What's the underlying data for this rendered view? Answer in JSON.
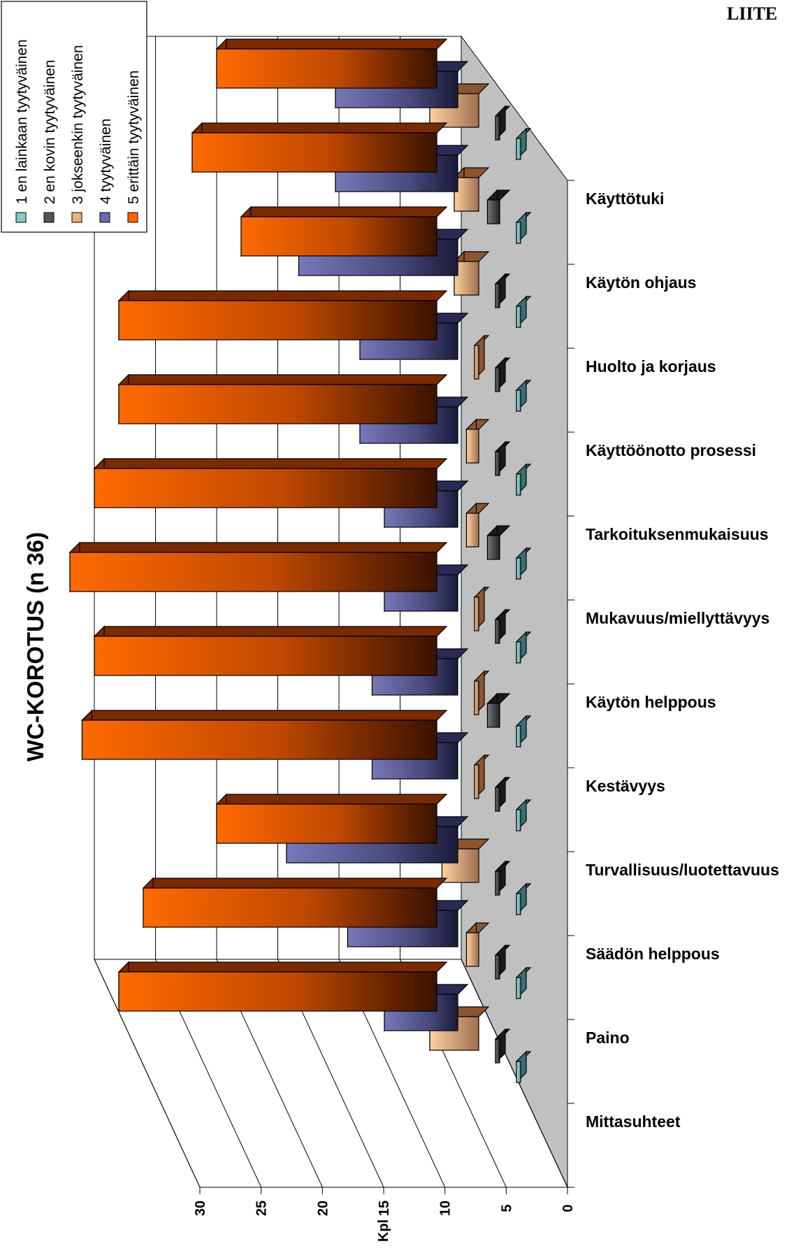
{
  "header": {
    "corner_label": "LIITE"
  },
  "chart_data": {
    "type": "bar",
    "title": "WC-KOROTUS (n 36)",
    "ylabel": "Kpl",
    "xlabel": "",
    "ylim": [
      0,
      30
    ],
    "ticks": [
      "0",
      "5",
      "10",
      "15",
      "20",
      "25",
      "30"
    ],
    "grid": true,
    "legend_position": "top-left",
    "categories": [
      "Käyttötuki",
      "Käytön ohjaus",
      "Huolto ja korjaus",
      "Käyttöönotto prosessi",
      "Tarkoituksenmukaisuus",
      "Mukavuus/miellyttävyys",
      "Käytön helppous",
      "Kestävyys",
      "Turvallisuus/luotettavuus",
      "Säädön helppous",
      "Paino",
      "Mittasuhteet"
    ],
    "series": [
      {
        "name": "1 en lainkaan tyytyväinen",
        "color": "#88c8c8",
        "values": [
          0,
          0,
          0,
          0,
          0,
          0,
          0,
          0,
          0,
          0,
          0,
          0
        ]
      },
      {
        "name": "2 en kovin tyytyväinen",
        "color": "#555555",
        "values": [
          0,
          1,
          0,
          0,
          0,
          1,
          0,
          1,
          0,
          0,
          0,
          0
        ]
      },
      {
        "name": "3 jokseenkin tyytyväinen",
        "color": "#e8b080",
        "values": [
          4,
          2,
          2,
          0,
          1,
          1,
          0,
          0,
          0,
          3,
          1,
          4
        ]
      },
      {
        "name": "4 tyytyväinen",
        "color": "#6a6aa8",
        "values": [
          10,
          10,
          13,
          8,
          8,
          6,
          6,
          7,
          7,
          14,
          9,
          6
        ]
      },
      {
        "name": "5 erittäin tyytyväinen",
        "color": "#ff6600",
        "values": [
          18,
          20,
          16,
          26,
          26,
          28,
          30,
          28,
          29,
          18,
          24,
          26
        ]
      }
    ]
  }
}
